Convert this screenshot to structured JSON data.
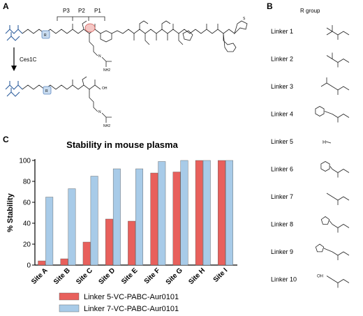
{
  "panels": {
    "a": "A",
    "b": "B",
    "c": "C"
  },
  "scheme": {
    "p3": "P3",
    "p2": "P2",
    "p1": "P1",
    "enzyme": "Ces1C",
    "r": "R",
    "atoms": {
      "n": "N",
      "h": "H",
      "o": "O",
      "oh": "OH",
      "nh2": "NH2",
      "s": "S"
    }
  },
  "rgroups": {
    "header": "R group",
    "items": [
      {
        "label": "Linker 1",
        "structure": "tert-butyl amide"
      },
      {
        "label": "Linker 2",
        "structure": "isopropyl amide"
      },
      {
        "label": "Linker 3",
        "structure": "isobutyl amide"
      },
      {
        "label": "Linker 4",
        "structure": "benzyl amide"
      },
      {
        "label": "Linker 5",
        "structure": "H"
      },
      {
        "label": "Linker 6",
        "structure": "phenyl amide"
      },
      {
        "label": "Linker 7",
        "structure": "methyl amide"
      },
      {
        "label": "Linker 8",
        "structure": "imidazolyl amide"
      },
      {
        "label": "Linker 9",
        "structure": "imidazolylmethyl amide"
      },
      {
        "label": "Linker 10",
        "structure": "hydroxymethyl amide"
      }
    ],
    "h_text": "H"
  },
  "chart_data": {
    "type": "bar",
    "title": "Stability in mouse plasma",
    "ylabel": "% Stability",
    "xlabel": "",
    "ylim": [
      0,
      100
    ],
    "yticks": [
      0,
      20,
      40,
      60,
      80,
      100
    ],
    "categories": [
      "Site A",
      "Site B",
      "Site C",
      "Site D",
      "Site E",
      "Site F",
      "Site G",
      "Site H",
      "Site I"
    ],
    "series": [
      {
        "name": "Linker 5-VC-PABC-Aur0101",
        "color": "#e8605c",
        "values": [
          4,
          6,
          22,
          44,
          42,
          88,
          89,
          100,
          100
        ]
      },
      {
        "name": "Linker 7-VC-PABC-Aur0101",
        "color": "#a8cbe8",
        "values": [
          65,
          73,
          85,
          92,
          92,
          99,
          100,
          100,
          100
        ]
      }
    ],
    "legend_position": "bottom",
    "grid": false
  }
}
